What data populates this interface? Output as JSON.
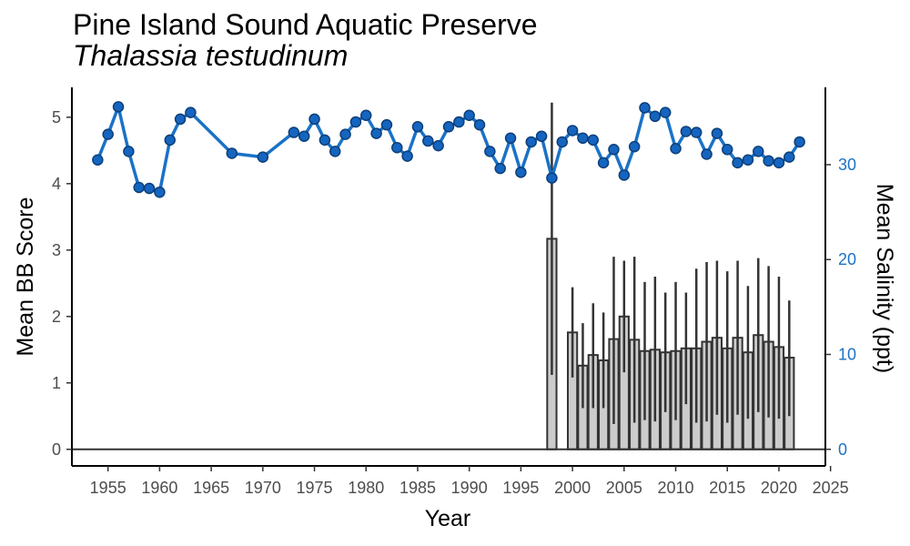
{
  "title": "Pine Island Sound Aquatic Preserve",
  "subtitle": "Thalassia testudinum",
  "colors": {
    "salinity": "#1a72c7",
    "salinity_point": "#1565c0",
    "bar_fill": "#cccccc",
    "bar_stroke": "#333333"
  },
  "chart_data": {
    "type": "bar",
    "xlabel": "Year",
    "ylabel": "Mean BB Score",
    "y2label": "Mean Salinity (ppt)",
    "xlim": [
      1951.5,
      2024.5
    ],
    "ylim": [
      -0.25,
      5.45
    ],
    "y2lim": [
      -1.75,
      38.15
    ],
    "xticks": [
      1955,
      1960,
      1965,
      1970,
      1975,
      1980,
      1985,
      1990,
      1995,
      2000,
      2005,
      2010,
      2015,
      2020,
      2025
    ],
    "yticks": [
      0,
      1,
      2,
      3,
      4,
      5
    ],
    "y2ticks": [
      0,
      10,
      20,
      30
    ],
    "grid": false,
    "series": [
      {
        "name": "Mean BB Score",
        "type": "bar",
        "points": [
          {
            "x": 1998,
            "y": 3.17,
            "lo": 1.12,
            "hi": 5.22
          },
          {
            "x": 2000,
            "y": 1.76,
            "lo": 1.08,
            "hi": 2.44
          },
          {
            "x": 2001,
            "y": 1.26,
            "lo": 0.62,
            "hi": 1.9
          },
          {
            "x": 2002,
            "y": 1.42,
            "lo": 0.62,
            "hi": 2.2
          },
          {
            "x": 2003,
            "y": 1.34,
            "lo": 0.62,
            "hi": 2.06
          },
          {
            "x": 2004,
            "y": 1.66,
            "lo": 0.38,
            "hi": 2.9
          },
          {
            "x": 2005,
            "y": 2.0,
            "lo": 1.16,
            "hi": 2.84
          },
          {
            "x": 2006,
            "y": 1.65,
            "lo": 0.4,
            "hi": 2.9
          },
          {
            "x": 2007,
            "y": 1.48,
            "lo": 0.44,
            "hi": 2.52
          },
          {
            "x": 2008,
            "y": 1.5,
            "lo": 0.42,
            "hi": 2.6
          },
          {
            "x": 2009,
            "y": 1.46,
            "lo": 0.56,
            "hi": 2.36
          },
          {
            "x": 2010,
            "y": 1.48,
            "lo": 0.44,
            "hi": 2.52
          },
          {
            "x": 2011,
            "y": 1.52,
            "lo": 0.68,
            "hi": 2.36
          },
          {
            "x": 2012,
            "y": 1.52,
            "lo": 0.4,
            "hi": 2.72
          },
          {
            "x": 2013,
            "y": 1.62,
            "lo": 0.42,
            "hi": 2.82
          },
          {
            "x": 2014,
            "y": 1.68,
            "lo": 0.52,
            "hi": 2.84
          },
          {
            "x": 2015,
            "y": 1.52,
            "lo": 0.4,
            "hi": 2.68
          },
          {
            "x": 2016,
            "y": 1.68,
            "lo": 0.52,
            "hi": 2.84
          },
          {
            "x": 2017,
            "y": 1.46,
            "lo": 0.46,
            "hi": 2.46
          },
          {
            "x": 2018,
            "y": 1.72,
            "lo": 0.56,
            "hi": 2.88
          },
          {
            "x": 2019,
            "y": 1.62,
            "lo": 0.48,
            "hi": 2.76
          },
          {
            "x": 2020,
            "y": 1.54,
            "lo": 0.46,
            "hi": 2.6
          },
          {
            "x": 2021,
            "y": 1.38,
            "lo": 0.5,
            "hi": 2.24
          }
        ]
      },
      {
        "name": "Mean Salinity (ppt)",
        "type": "line",
        "axis": "right",
        "points": [
          {
            "x": 1954,
            "y": 30.5
          },
          {
            "x": 1955,
            "y": 33.2
          },
          {
            "x": 1956,
            "y": 36.1
          },
          {
            "x": 1957,
            "y": 31.4
          },
          {
            "x": 1958,
            "y": 27.6
          },
          {
            "x": 1959,
            "y": 27.5
          },
          {
            "x": 1960,
            "y": 27.1
          },
          {
            "x": 1961,
            "y": 32.6
          },
          {
            "x": 1962,
            "y": 34.8
          },
          {
            "x": 1963,
            "y": 35.5
          },
          {
            "x": 1967,
            "y": 31.2
          },
          {
            "x": 1970,
            "y": 30.8
          },
          {
            "x": 1973,
            "y": 33.4
          },
          {
            "x": 1974,
            "y": 33.0
          },
          {
            "x": 1975,
            "y": 34.8
          },
          {
            "x": 1976,
            "y": 32.6
          },
          {
            "x": 1977,
            "y": 31.4
          },
          {
            "x": 1978,
            "y": 33.2
          },
          {
            "x": 1979,
            "y": 34.5
          },
          {
            "x": 1980,
            "y": 35.2
          },
          {
            "x": 1981,
            "y": 33.3
          },
          {
            "x": 1982,
            "y": 34.2
          },
          {
            "x": 1983,
            "y": 31.8
          },
          {
            "x": 1984,
            "y": 30.9
          },
          {
            "x": 1985,
            "y": 34.0
          },
          {
            "x": 1986,
            "y": 32.5
          },
          {
            "x": 1987,
            "y": 32.0
          },
          {
            "x": 1988,
            "y": 34.0
          },
          {
            "x": 1989,
            "y": 34.5
          },
          {
            "x": 1990,
            "y": 35.2
          },
          {
            "x": 1991,
            "y": 34.2
          },
          {
            "x": 1992,
            "y": 31.4
          },
          {
            "x": 1993,
            "y": 29.6
          },
          {
            "x": 1994,
            "y": 32.8
          },
          {
            "x": 1995,
            "y": 29.2
          },
          {
            "x": 1996,
            "y": 32.4
          },
          {
            "x": 1997,
            "y": 33.0
          },
          {
            "x": 1998,
            "y": 28.6
          },
          {
            "x": 1999,
            "y": 32.4
          },
          {
            "x": 2000,
            "y": 33.6
          },
          {
            "x": 2001,
            "y": 32.8
          },
          {
            "x": 2002,
            "y": 32.6
          },
          {
            "x": 2003,
            "y": 30.2
          },
          {
            "x": 2004,
            "y": 31.6
          },
          {
            "x": 2005,
            "y": 28.9
          },
          {
            "x": 2006,
            "y": 31.9
          },
          {
            "x": 2007,
            "y": 36.0
          },
          {
            "x": 2008,
            "y": 35.1
          },
          {
            "x": 2009,
            "y": 35.5
          },
          {
            "x": 2010,
            "y": 31.7
          },
          {
            "x": 2011,
            "y": 33.5
          },
          {
            "x": 2012,
            "y": 33.4
          },
          {
            "x": 2013,
            "y": 31.1
          },
          {
            "x": 2014,
            "y": 33.3
          },
          {
            "x": 2015,
            "y": 31.6
          },
          {
            "x": 2016,
            "y": 30.2
          },
          {
            "x": 2017,
            "y": 30.5
          },
          {
            "x": 2018,
            "y": 31.4
          },
          {
            "x": 2019,
            "y": 30.4
          },
          {
            "x": 2020,
            "y": 30.2
          },
          {
            "x": 2021,
            "y": 30.8
          },
          {
            "x": 2022,
            "y": 32.4
          }
        ]
      }
    ]
  }
}
